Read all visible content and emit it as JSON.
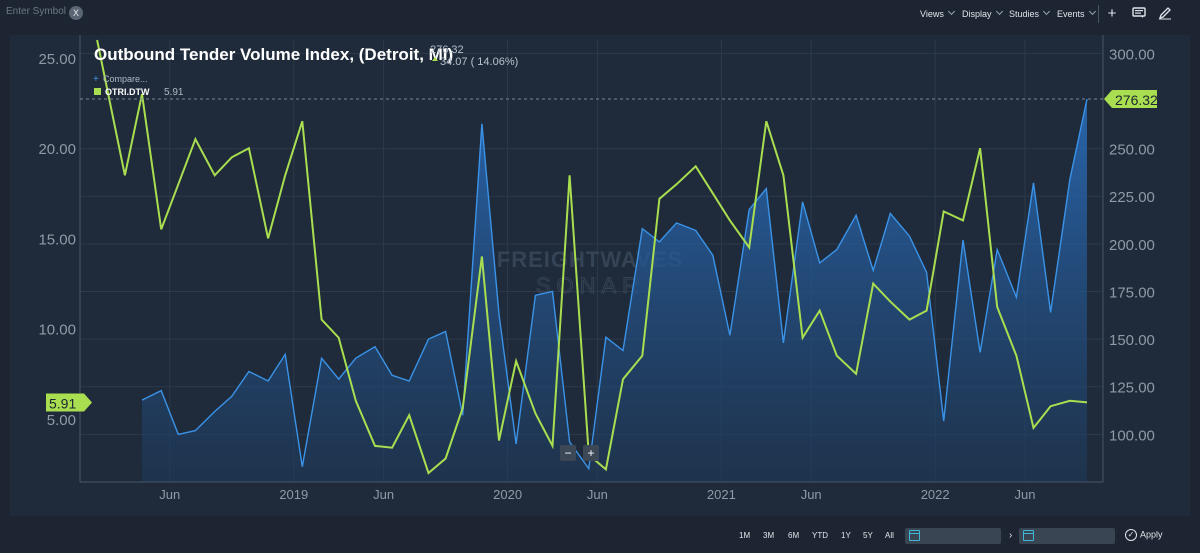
{
  "toolbar": {
    "symbol_placeholder": "Enter Symbol",
    "clear_label": "X",
    "menus": [
      "Views",
      "Display",
      "Studies",
      "Events"
    ],
    "icons": [
      "plus-icon",
      "comment-icon",
      "pencil-icon"
    ]
  },
  "legend": {
    "compare_label": "Compare...",
    "series_symbol": "OTRI.DTW",
    "series_value": "5.91"
  },
  "header": {
    "title": "Outbound Tender Volume Index, (Detroit, MI)",
    "price": "276.32",
    "change": "34.07 ( 14.06%)"
  },
  "watermark": {
    "line1": "FREIGHTWAVES",
    "line2": "SONAR"
  },
  "chart_controls": {
    "minus": "−",
    "plus": "+"
  },
  "colors": {
    "otvi": "#3a93e8",
    "otri": "#a9de50",
    "background": "#1f2b3a",
    "grid": "#2c3a4a"
  },
  "chart_data": {
    "type": "line",
    "title": "Outbound Tender Volume Index, (Detroit, MI)",
    "x_ticks": [
      "Jun",
      "2019",
      "Jun",
      "2020",
      "Jun",
      "2021",
      "Jun",
      "2022",
      "Jun"
    ],
    "y_left_ticks": [
      "25.00",
      "20.00",
      "15.00",
      "10.00",
      "5.00"
    ],
    "y_right_ticks": [
      "300.00",
      "250.00",
      "225.00",
      "200.00",
      "175.00",
      "150.00",
      "125.00",
      "100.00"
    ],
    "y_left_range": [
      1.5,
      26
    ],
    "y_right_range": [
      75,
      307
    ],
    "last_value_labels": {
      "left": "5.91",
      "right": "276.32"
    },
    "series": [
      {
        "name": "Outbound Tender Volume Index, (Detroit, MI)",
        "axis": "right",
        "x": [
          2018.29,
          2018.38,
          2018.46,
          2018.54,
          2018.63,
          2018.71,
          2018.79,
          2018.88,
          2018.96,
          2019.04,
          2019.13,
          2019.21,
          2019.29,
          2019.38,
          2019.46,
          2019.54,
          2019.63,
          2019.71,
          2019.79,
          2019.88,
          2019.96,
          2020.04,
          2020.13,
          2020.21,
          2020.29,
          2020.38,
          2020.46,
          2020.54,
          2020.63,
          2020.71,
          2020.79,
          2020.88,
          2020.96,
          2021.04,
          2021.13,
          2021.21,
          2021.29,
          2021.38,
          2021.46,
          2021.54,
          2021.63,
          2021.71,
          2021.79,
          2021.88,
          2021.96,
          2022.04,
          2022.13,
          2022.21,
          2022.29,
          2022.38,
          2022.46,
          2022.54,
          2022.63,
          2022.71
        ],
        "values": [
          118,
          123,
          100,
          102,
          112,
          120,
          133,
          128,
          142,
          83,
          140,
          129,
          140,
          146,
          131,
          128,
          150,
          154,
          110,
          263,
          163,
          95,
          173,
          175,
          96,
          82,
          151,
          144,
          208,
          201,
          211,
          207,
          194,
          152,
          218,
          229,
          148,
          222,
          190,
          197,
          215,
          186,
          216,
          204,
          185,
          107,
          202,
          143,
          197,
          172,
          232,
          164,
          234,
          276
        ]
      },
      {
        "name": "OTRI.DTW",
        "axis": "left",
        "x": [
          2018.08,
          2018.21,
          2018.29,
          2018.38,
          2018.46,
          2018.54,
          2018.63,
          2018.71,
          2018.79,
          2018.88,
          2018.96,
          2019.04,
          2019.13,
          2019.21,
          2019.29,
          2019.38,
          2019.46,
          2019.54,
          2019.63,
          2019.71,
          2019.79,
          2019.88,
          2019.96,
          2020.04,
          2020.13,
          2020.21,
          2020.29,
          2020.38,
          2020.46,
          2020.54,
          2020.63,
          2020.71,
          2020.79,
          2020.88,
          2020.96,
          2021.04,
          2021.13,
          2021.21,
          2021.29,
          2021.38,
          2021.46,
          2021.54,
          2021.63,
          2021.71,
          2021.79,
          2021.88,
          2021.96,
          2022.04,
          2022.13,
          2022.21,
          2022.29,
          2022.38,
          2022.46,
          2022.54,
          2022.63,
          2022.71
        ],
        "values": [
          26,
          18.5,
          23,
          15.5,
          18,
          20.5,
          18.5,
          19.5,
          20,
          15,
          18.5,
          21.5,
          10.5,
          9.5,
          6,
          3.5,
          3.4,
          5.2,
          2,
          2.8,
          5.6,
          14,
          3.8,
          8.2,
          5.3,
          3.5,
          18.5,
          3,
          2.2,
          7.2,
          8.5,
          17.2,
          18,
          19,
          17.5,
          16,
          14.5,
          21.5,
          18.5,
          9.5,
          11,
          8.5,
          7.5,
          12.5,
          11.5,
          10.5,
          11,
          16.5,
          16,
          20,
          11.2,
          8.5,
          4.5,
          5.7,
          6.0,
          5.91
        ]
      }
    ]
  },
  "bottom": {
    "ranges": [
      "1M",
      "3M",
      "6M",
      "YTD",
      "1Y",
      "5Y",
      "All"
    ],
    "date_separator": "›",
    "apply_label": "Apply"
  }
}
